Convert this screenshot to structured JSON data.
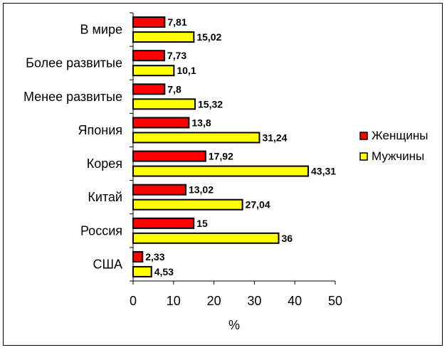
{
  "chart_data": {
    "type": "bar",
    "orientation": "horizontal",
    "categories": [
      "В мире",
      "Более развитые",
      "Менее развитые",
      "Япония",
      "Корея",
      "Китай",
      "Россия",
      "США"
    ],
    "series": [
      {
        "name": "Женщины",
        "color": "#ff0000",
        "values": [
          7.81,
          7.73,
          7.8,
          13.8,
          17.92,
          13.02,
          15,
          2.33
        ],
        "labels": [
          "7,81",
          "7,73",
          "7,8",
          "13,8",
          "17,92",
          "13,02",
          "15",
          "2,33"
        ]
      },
      {
        "name": "Мужчины",
        "color": "#ffff00",
        "values": [
          15.02,
          10.1,
          15.32,
          31.24,
          43.31,
          27.04,
          36,
          4.53
        ],
        "labels": [
          "15,02",
          "10,1",
          "15,32",
          "31,24",
          "43,31",
          "27,04",
          "36",
          "4,53"
        ]
      }
    ],
    "xlabel": "%",
    "xlim": [
      0,
      50
    ],
    "xticks": [
      "0",
      "10",
      "20",
      "30",
      "40",
      "50"
    ],
    "grid": false,
    "legend_position": "right"
  }
}
